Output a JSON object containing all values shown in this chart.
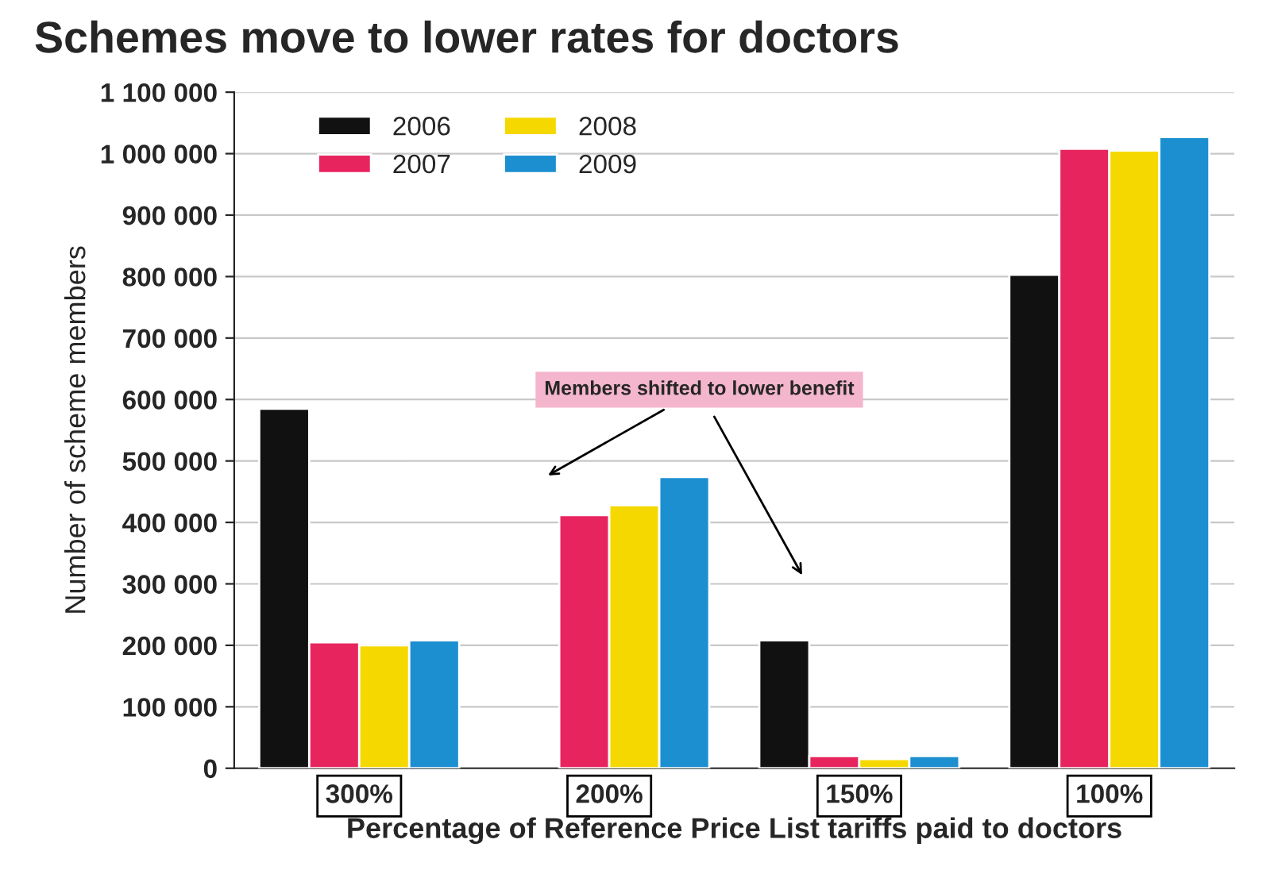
{
  "chart_data": {
    "type": "bar",
    "title": "Schemes move to lower rates for doctors",
    "xlabel": "Percentage of Reference Price List tariffs paid to doctors",
    "ylabel": "Number of scheme members",
    "categories": [
      "300%",
      "200%",
      "150%",
      "100%"
    ],
    "series": [
      {
        "name": "2006",
        "color": "#111111",
        "values": [
          585000,
          null,
          208000,
          803000
        ]
      },
      {
        "name": "2007",
        "color": "#e8245e",
        "values": [
          205000,
          412000,
          20000,
          1008000
        ]
      },
      {
        "name": "2008",
        "color": "#f5d800",
        "values": [
          200000,
          428000,
          15000,
          1005000
        ]
      },
      {
        "name": "2009",
        "color": "#1c8fd0",
        "values": [
          208000,
          474000,
          20000,
          1027000
        ]
      }
    ],
    "ylim": [
      0,
      1100000
    ],
    "yticks": [
      {
        "value": 0,
        "label": "0"
      },
      {
        "value": 100000,
        "label": "100 000"
      },
      {
        "value": 200000,
        "label": "200 000"
      },
      {
        "value": 300000,
        "label": "300 000"
      },
      {
        "value": 400000,
        "label": "400 000"
      },
      {
        "value": 500000,
        "label": "500 000"
      },
      {
        "value": 600000,
        "label": "600 000"
      },
      {
        "value": 700000,
        "label": "700 000"
      },
      {
        "value": 800000,
        "label": "800 000"
      },
      {
        "value": 900000,
        "label": "900 000"
      },
      {
        "value": 1000000,
        "label": "1 000 000"
      },
      {
        "value": 1100000,
        "label": "1 100 000"
      }
    ],
    "grid": "y",
    "legend": "top left",
    "annotations": [
      "Members shifted to lower benefit"
    ]
  }
}
